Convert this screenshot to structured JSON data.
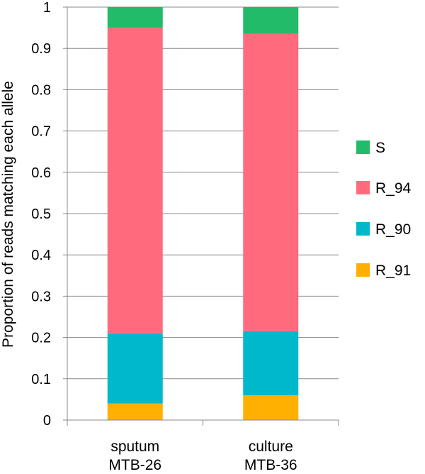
{
  "chart_data": {
    "type": "bar",
    "stacked": true,
    "categories": [
      [
        "sputum",
        "MTB-26"
      ],
      [
        "culture",
        "MTB-36"
      ]
    ],
    "series": [
      {
        "name": "R_91",
        "color": "#FFB000",
        "values": [
          0.04,
          0.06
        ]
      },
      {
        "name": "R_90",
        "color": "#00B8CC",
        "values": [
          0.17,
          0.155
        ]
      },
      {
        "name": "R_94",
        "color": "#FF6B7D",
        "values": [
          0.74,
          0.72
        ]
      },
      {
        "name": "S",
        "color": "#22BB6A",
        "values": [
          0.05,
          0.065
        ]
      }
    ],
    "legend_order": [
      "S",
      "R_94",
      "R_90",
      "R_91"
    ],
    "title": "",
    "xlabel": "",
    "ylabel": "Proportion of reads matching each allele",
    "ylim": [
      0,
      1
    ],
    "yticks": [
      "0",
      "0.1",
      "0.2",
      "0.3",
      "0.4",
      "0.5",
      "0.6",
      "0.7",
      "0.8",
      "0.9",
      "1"
    ],
    "grid": true,
    "legend_position": "right"
  }
}
